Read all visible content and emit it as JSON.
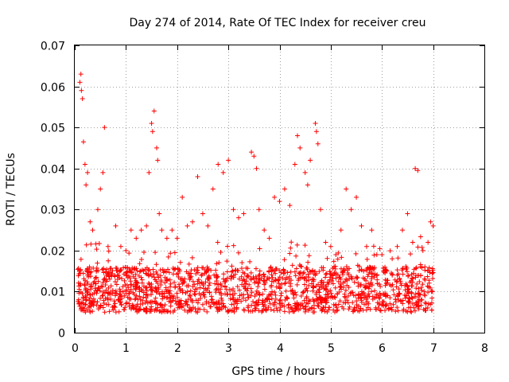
{
  "chart_data": {
    "type": "scatter",
    "title": "Day 274 of 2014, Rate Of TEC Index for receiver creu",
    "xlabel": "GPS time / hours",
    "ylabel": "ROTI / TECUs",
    "xlim": [
      0,
      8
    ],
    "ylim": [
      0,
      0.07
    ],
    "x_ticks": [
      0,
      1,
      2,
      3,
      4,
      5,
      6,
      7,
      8
    ],
    "x_tick_labels": [
      "0",
      "1",
      "2",
      "3",
      "4",
      "5",
      "6",
      "7",
      "8"
    ],
    "y_ticks": [
      0,
      0.01,
      0.02,
      0.03,
      0.04,
      0.05,
      0.06,
      0.07
    ],
    "y_tick_labels": [
      "0",
      "0.01",
      "0.02",
      "0.03",
      "0.04",
      "0.05",
      "0.06",
      "0.07"
    ],
    "grid": true,
    "marker": "+",
    "color": "#ff0000",
    "data_range_x": [
      0.05,
      7.0
    ],
    "baseline_band": [
      0.005,
      0.016
    ],
    "series": [
      {
        "name": "ROTI",
        "points": [
          [
            0.1,
            0.061
          ],
          [
            0.12,
            0.063
          ],
          [
            0.13,
            0.059
          ],
          [
            0.15,
            0.057
          ],
          [
            0.17,
            0.0465
          ],
          [
            0.2,
            0.041
          ],
          [
            0.22,
            0.036
          ],
          [
            0.25,
            0.039
          ],
          [
            0.3,
            0.027
          ],
          [
            0.35,
            0.025
          ],
          [
            0.45,
            0.03
          ],
          [
            0.5,
            0.035
          ],
          [
            0.55,
            0.039
          ],
          [
            0.58,
            0.05
          ],
          [
            0.65,
            0.021
          ],
          [
            0.8,
            0.026
          ],
          [
            0.9,
            0.021
          ],
          [
            1.0,
            0.02
          ],
          [
            1.1,
            0.025
          ],
          [
            1.2,
            0.023
          ],
          [
            1.3,
            0.025
          ],
          [
            1.4,
            0.026
          ],
          [
            1.45,
            0.039
          ],
          [
            1.5,
            0.051
          ],
          [
            1.52,
            0.049
          ],
          [
            1.55,
            0.054
          ],
          [
            1.6,
            0.045
          ],
          [
            1.62,
            0.042
          ],
          [
            1.65,
            0.029
          ],
          [
            1.7,
            0.025
          ],
          [
            1.8,
            0.023
          ],
          [
            1.9,
            0.025
          ],
          [
            2.0,
            0.023
          ],
          [
            2.1,
            0.033
          ],
          [
            2.2,
            0.026
          ],
          [
            2.3,
            0.027
          ],
          [
            2.4,
            0.038
          ],
          [
            2.5,
            0.029
          ],
          [
            2.6,
            0.026
          ],
          [
            2.7,
            0.035
          ],
          [
            2.8,
            0.041
          ],
          [
            2.9,
            0.039
          ],
          [
            3.0,
            0.042
          ],
          [
            3.1,
            0.03
          ],
          [
            3.2,
            0.028
          ],
          [
            3.3,
            0.029
          ],
          [
            3.45,
            0.044
          ],
          [
            3.5,
            0.043
          ],
          [
            3.55,
            0.04
          ],
          [
            3.6,
            0.03
          ],
          [
            3.7,
            0.025
          ],
          [
            3.8,
            0.023
          ],
          [
            3.9,
            0.033
          ],
          [
            4.0,
            0.032
          ],
          [
            4.1,
            0.035
          ],
          [
            4.2,
            0.031
          ],
          [
            4.3,
            0.041
          ],
          [
            4.35,
            0.048
          ],
          [
            4.4,
            0.045
          ],
          [
            4.5,
            0.039
          ],
          [
            4.55,
            0.036
          ],
          [
            4.6,
            0.042
          ],
          [
            4.7,
            0.051
          ],
          [
            4.72,
            0.049
          ],
          [
            4.75,
            0.046
          ],
          [
            4.8,
            0.03
          ],
          [
            4.9,
            0.022
          ],
          [
            5.0,
            0.021
          ],
          [
            5.1,
            0.019
          ],
          [
            5.2,
            0.025
          ],
          [
            5.3,
            0.035
          ],
          [
            5.4,
            0.03
          ],
          [
            5.5,
            0.033
          ],
          [
            5.6,
            0.026
          ],
          [
            5.7,
            0.021
          ],
          [
            5.8,
            0.025
          ],
          [
            5.9,
            0.019
          ],
          [
            6.0,
            0.019
          ],
          [
            6.1,
            0.015
          ],
          [
            6.2,
            0.018
          ],
          [
            6.3,
            0.021
          ],
          [
            6.4,
            0.025
          ],
          [
            6.5,
            0.029
          ],
          [
            6.6,
            0.022
          ],
          [
            6.65,
            0.04
          ],
          [
            6.7,
            0.0395
          ],
          [
            6.8,
            0.02
          ],
          [
            6.9,
            0.022
          ],
          [
            6.95,
            0.027
          ],
          [
            7.0,
            0.026
          ]
        ]
      }
    ]
  }
}
